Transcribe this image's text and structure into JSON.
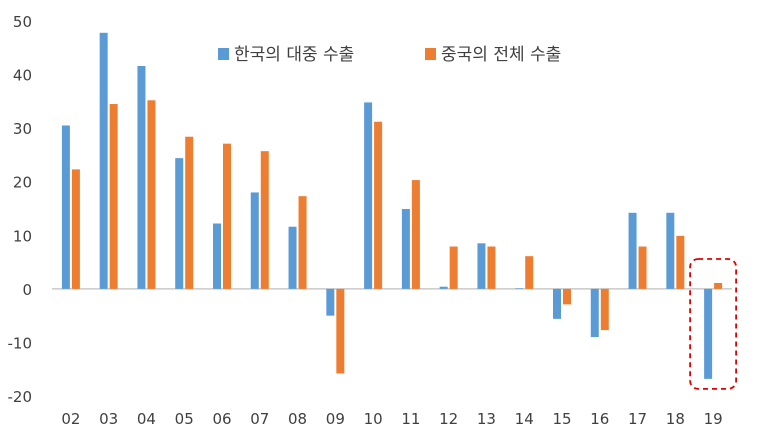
{
  "chart_data": {
    "type": "bar",
    "title": "",
    "xlabel": "",
    "ylabel": "",
    "categories": [
      "02",
      "03",
      "04",
      "05",
      "06",
      "07",
      "08",
      "09",
      "10",
      "11",
      "12",
      "13",
      "14",
      "15",
      "16",
      "17",
      "18",
      "19"
    ],
    "series": [
      {
        "name": "한국의 대중 수출",
        "color": "#5B9BD5",
        "values": [
          30.5,
          47.8,
          41.6,
          24.4,
          12.2,
          18.0,
          11.6,
          -5.0,
          34.8,
          14.9,
          0.4,
          8.5,
          0.1,
          -5.6,
          -9.0,
          14.2,
          14.2,
          -16.8
        ]
      },
      {
        "name": "중국의 전체 수출",
        "color": "#ED7D31",
        "values": [
          22.3,
          34.5,
          35.2,
          28.4,
          27.1,
          25.7,
          17.3,
          -15.8,
          31.2,
          20.3,
          7.9,
          7.9,
          6.1,
          -2.9,
          -7.7,
          7.9,
          9.9,
          1.1
        ]
      }
    ],
    "ylim": [
      -20,
      50
    ],
    "yticks": [
      -20,
      -10,
      0,
      10,
      20,
      30,
      40,
      50
    ],
    "grid": false,
    "legend": "top-center",
    "highlight": {
      "category": "19",
      "style": "dashed-box",
      "color": "#E00000"
    }
  }
}
